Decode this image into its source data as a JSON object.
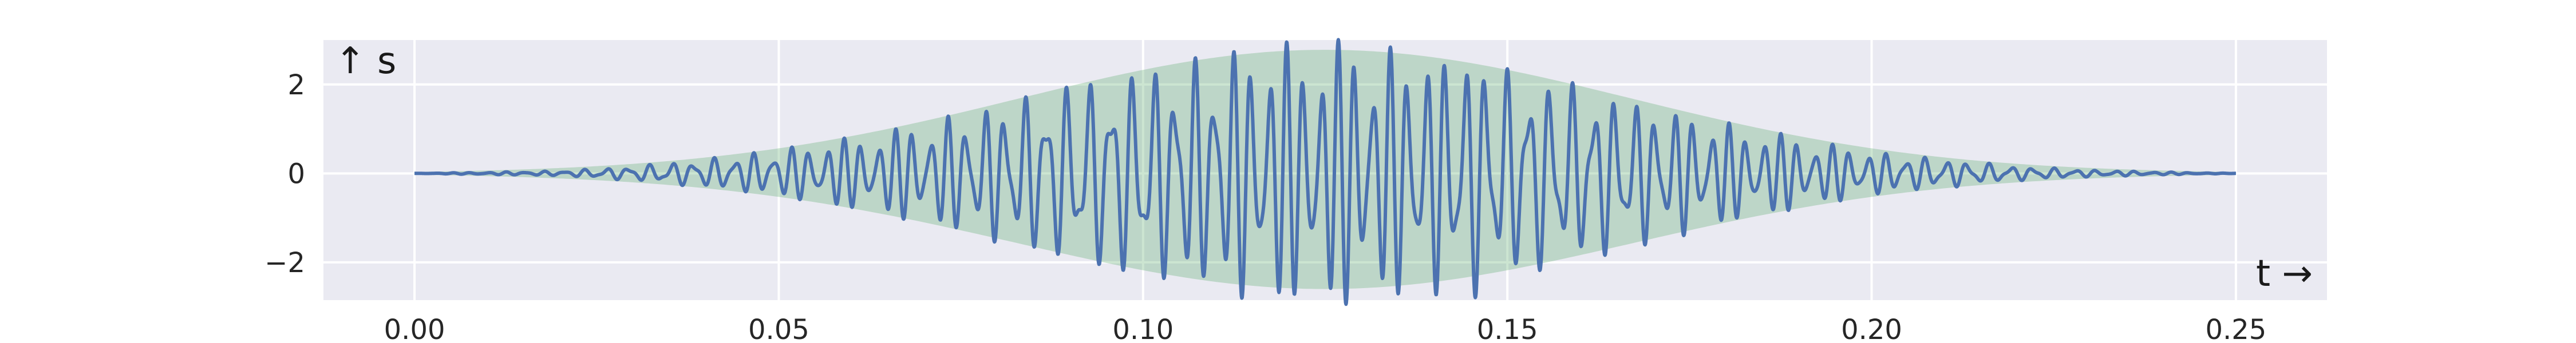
{
  "chart_data": {
    "type": "line",
    "title": "",
    "xlabel": "t →",
    "ylabel": "↑ s",
    "xlim": [
      -0.0125,
      0.2625
    ],
    "ylim": [
      -2.85,
      3.0
    ],
    "grid": true,
    "xticks": [
      0.0,
      0.05,
      0.1,
      0.15,
      0.2,
      0.25
    ],
    "xtick_labels": [
      "0.00",
      "0.05",
      "0.10",
      "0.15",
      "0.20",
      "0.25"
    ],
    "yticks": [
      -2,
      0,
      2
    ],
    "ytick_labels": [
      "−2",
      "0",
      "2"
    ],
    "envelope": {
      "center": 0.125,
      "peak_upper": 2.78,
      "peak_lower": -2.6,
      "width": 0.042,
      "color": "#55a868"
    },
    "series": [
      {
        "color": "#4c72b0",
        "x": [
          0.0,
          0.02,
          0.03,
          0.04,
          0.05,
          0.06,
          0.07,
          0.08,
          0.09,
          0.1,
          0.105,
          0.11,
          0.115,
          0.12,
          0.125,
          0.13,
          0.135,
          0.14,
          0.145,
          0.15,
          0.16,
          0.17,
          0.18,
          0.19,
          0.2,
          0.21,
          0.22,
          0.23,
          0.24,
          0.25
        ],
        "amplitude": [
          0.0,
          0.05,
          0.15,
          0.3,
          0.5,
          0.75,
          1.05,
          1.45,
          1.9,
          2.2,
          2.3,
          2.5,
          2.7,
          2.7,
          2.8,
          2.75,
          2.6,
          2.5,
          2.6,
          2.2,
          1.85,
          1.45,
          1.05,
          0.75,
          0.45,
          0.3,
          0.15,
          0.07,
          0.03,
          0.0
        ]
      }
    ]
  }
}
